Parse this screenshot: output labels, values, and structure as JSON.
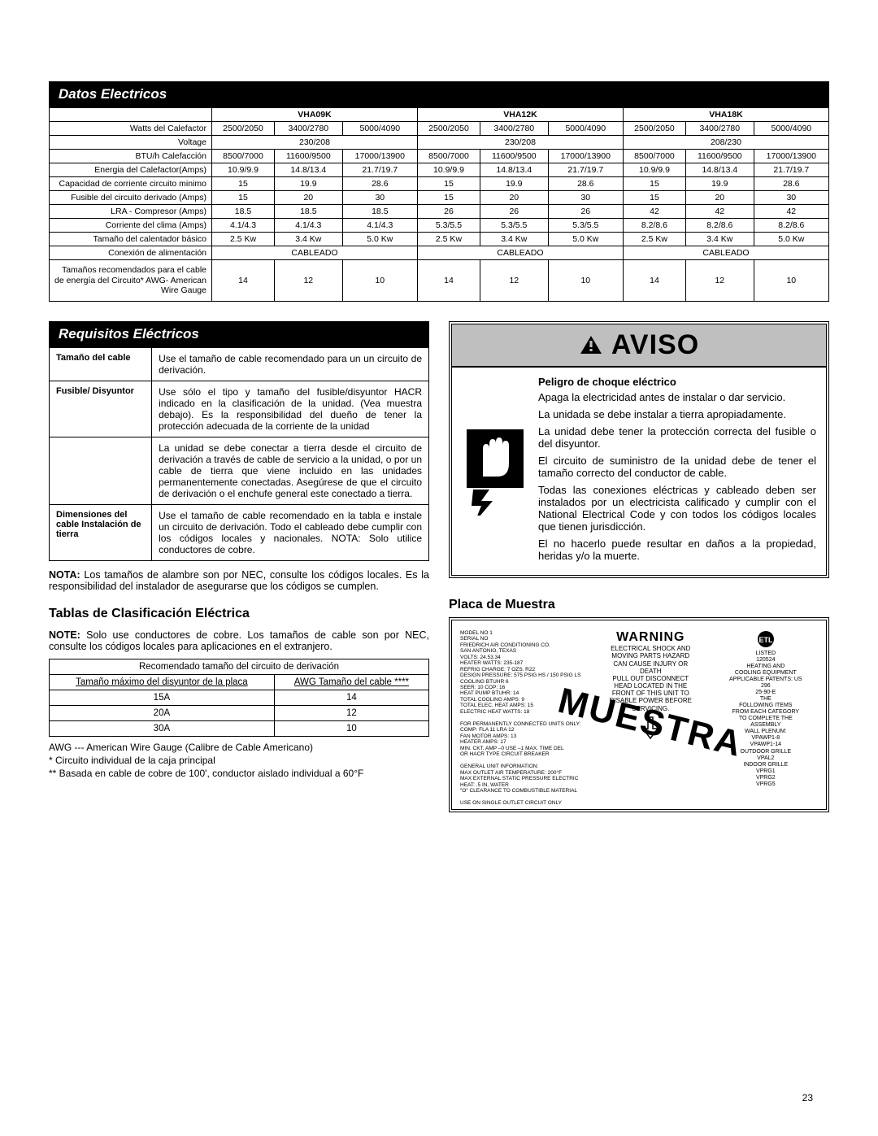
{
  "datos": {
    "title": "Datos Electricos",
    "models": [
      "VHA09K",
      "VHA12K",
      "VHA18K"
    ],
    "rows": [
      {
        "label": "Watts del Calefactor",
        "cells": [
          "2500/2050",
          "3400/2780",
          "5000/4090",
          "2500/2050",
          "3400/2780",
          "5000/4090",
          "2500/2050",
          "3400/2780",
          "5000/4090"
        ]
      },
      {
        "label": "Voltage",
        "spanCells": [
          "230/208",
          "230/208",
          "208/230"
        ]
      },
      {
        "label": "BTU/h Calefacción",
        "cells": [
          "8500/7000",
          "11600/9500",
          "17000/13900",
          "8500/7000",
          "11600/9500",
          "17000/13900",
          "8500/7000",
          "11600/9500",
          "17000/13900"
        ]
      },
      {
        "label": "Energia del Calefactor(Amps)",
        "cells": [
          "10.9/9.9",
          "14.8/13.4",
          "21.7/19.7",
          "10.9/9.9",
          "14.8/13.4",
          "21.7/19.7",
          "10.9/9.9",
          "14.8/13.4",
          "21.7/19.7"
        ]
      },
      {
        "label": "Capacidad de corriente circuito minimo",
        "cells": [
          "15",
          "19.9",
          "28.6",
          "15",
          "19.9",
          "28.6",
          "15",
          "19.9",
          "28.6"
        ]
      },
      {
        "label": "Fusible del circuito derivado (Amps)",
        "cells": [
          "15",
          "20",
          "30",
          "15",
          "20",
          "30",
          "15",
          "20",
          "30"
        ]
      },
      {
        "label": "LRA - Compresor (Amps)",
        "cells": [
          "18.5",
          "18.5",
          "18.5",
          "26",
          "26",
          "26",
          "42",
          "42",
          "42"
        ]
      },
      {
        "label": "Corriente del clima (Amps)",
        "cells": [
          "4.1/4.3",
          "4.1/4.3",
          "4.1/4.3",
          "5.3/5.5",
          "5.3/5.5",
          "5.3/5.5",
          "8.2/8.6",
          "8.2/8.6",
          "8.2/8.6"
        ]
      },
      {
        "label": "Tamaño del calentador básico",
        "cells": [
          "2.5 Kw",
          "3.4 Kw",
          "5.0 Kw",
          "2.5 Kw",
          "3.4 Kw",
          "5.0 Kw",
          "2.5 Kw",
          "3.4 Kw",
          "5.0 Kw"
        ]
      },
      {
        "label": "Conexión de alimentación",
        "spanCells": [
          "CABLEADO",
          "CABLEADO",
          "CABLEADO"
        ]
      },
      {
        "label": "Tamaños recomendados para el cable de energía del Circuito* AWG- American Wire Gauge",
        "cells": [
          "14",
          "12",
          "10",
          "14",
          "12",
          "10",
          "14",
          "12",
          "10"
        ],
        "tall": true
      }
    ]
  },
  "requisitos": {
    "title": "Requisitos Eléctricos",
    "rows": [
      {
        "label": "Tamaño del cable",
        "text": "Use el tamaño de cable recomendado para un  un circuito de derivación."
      },
      {
        "label": "Fusible/ Disyuntor",
        "text": "Use sólo el tipo y tamaño del fusible/disyuntor HACR indicado en la clasificación de la unidad. (Vea muestra debajo). Es la responsibilidad del dueño de tener la protección adecuada de la corriente  de la unidad"
      },
      {
        "label": "",
        "text": "La unidad se debe conectar a tierra desde el circuito de derivación a través de cable de servicio a la unidad, o por un cable de tierra que viene incluido en las unidades permanentemente conectadas. Asegúrese de que el circuito de derivación o el enchufe general este conectado a tierra."
      },
      {
        "label": "Dimensiones del cable Instalación de tierra",
        "text": "Use el tamaño de cable recomendado en la tabla e instale un circuito de derivación. Todo el cableado debe cumplir con los códigos locales y nacionales. NOTA: Solo utilice conductores de cobre."
      }
    ],
    "nota": "NOTA: Los tamaños de alambre son por NEC, consulte los códigos locales. Es la responsibilidad del instalador de asegurarse que los códigos se cumplen."
  },
  "tablas": {
    "title": "Tablas de Clasificación Eléctrica",
    "note": "NOTE: Solo use conductores de cobre.  Los tamaños de cable son por NEC, consulte los códigos locales para aplicaciones en el extranjero.",
    "caption": "Recomendado tamaño del circuito de derivación",
    "header": [
      "Tamaño máximo del disyuntor de la placa",
      "AWG Tamaño del cable ****"
    ],
    "rows": [
      [
        "15A",
        "14"
      ],
      [
        "20A",
        "12"
      ],
      [
        "30A",
        "10"
      ]
    ],
    "foot1": "AWG --- American Wire Gauge  (Calibre de Cable Americano)",
    "foot2": "*   Circuito individual de la caja principal",
    "foot3": "** Basada en cable de cobre de 100', conductor aislado individual a 60°F"
  },
  "aviso": {
    "title": "AVISO",
    "peligro": "Peligro de choque eléctrico",
    "paras": [
      "Apaga la electricidad antes de instalar o dar servicio.",
      "La unidada se debe instalar a tierra apropiadamente.",
      "La unidad debe tener la protección correcta del fusible o del disyuntor.",
      "El circuito de suministro de la unidad debe de tener el tamaño correcto del conductor de cable.",
      "Todas las conexiones eléctricas y cableado deben ser instalados por un electricista calificado y cumplir con el National Electrical Code y con todos los códigos locales que tienen jurisdicción.",
      "El no hacerlo puede resultar en daños a la propiedad, heridas y/o la muerte."
    ]
  },
  "placa": {
    "title": "Placa de Muestra",
    "warning": "WARNING",
    "overlay": "MUESTRA",
    "left_lines": [
      "MODEL NO 1",
      "SERIAL NO",
      "FRIEDRICH AIR CONDITIONING CO.",
      "SAN ANTONIO, TEXAS",
      "VOLTS: 24.53.34",
      "HEATER WATTS: 235-187",
      "REFRIG CHARGE: 7 OZS. R22",
      "DESIGN PRESSURE: 575 PSIG HS / 150 PSIG LS",
      "COOLING BTUHR 6",
      "SEER: 10     COP: 16",
      "HEAT PUMP BTUHR: 14",
      "TOTAL COOLING AMPS: 9",
      "TOTAL ELEC. HEAT AMPS: 15",
      "ELECTRIC HEAT WATTS: 18",
      "",
      "FOR PERMANENTLY CONNECTED UNITS ONLY:",
      "COMP: FLA 11 LRA 12",
      "FAN MOTOR AMPS: 13",
      "HEATER AMPS: 17",
      "MIN. CKT. AMP –0 USE –1 MAX. TIME DEL",
      "OR HACR TYPE CIRCUIT BREAKER",
      "",
      "GENERAL UNIT INFORMATION:",
      "MAX OUTLET AIR TEMPERATURE: 200°F",
      "MAX EXTERNAL STATIC PRESSURE ELECTRIC",
      "HEAT: .5 IN. WATER",
      "\"O\" CLEARANCE TO COMBUSTIBLE MATERIAL",
      "",
      "USE ON SINGLE OUTLET CIRCUIT ONLY"
    ],
    "mid_lines": [
      "ELECTRICAL SHOCK AND",
      "MOVING PARTS HAZARD",
      "CAN CAUSE INJURY OR",
      "DEATH",
      "PULL OUT DISCONNECT",
      "HEAD LOCATED IN THE",
      "FRONT OF THIS UNIT TO",
      "DISABLE POWER BEFORE",
      "SERVICING."
    ],
    "right_lines": [
      "LISTED",
      "120524",
      "HEATING AND",
      "COOLING EQUIPMENT",
      "APPLICABLE PATENTS: US",
      "296",
      "25-90-E",
      "THE",
      "FOLLOWING ITEMS",
      "FROM EACH CATEGORY",
      "TO COMPLETE THE",
      "ASSEMBLY",
      "WALL PLENUM:",
      "VPAWP1-8",
      "VPAWP1-14",
      "OUTDOOR GRILLE",
      "VPAL2",
      "INDOOR GRILLE",
      "VPRG1",
      "VPRG2",
      "VPRG5"
    ]
  },
  "page_number": "23",
  "style": {
    "bg": "#ffffff",
    "fg": "#000000",
    "header_bg": "#000000",
    "header_fg": "#ffffff",
    "aviso_head_bg": "#bfbfbf",
    "font_family": "Arial",
    "body_font_pt": 11,
    "table_font_pt": 10.5
  }
}
